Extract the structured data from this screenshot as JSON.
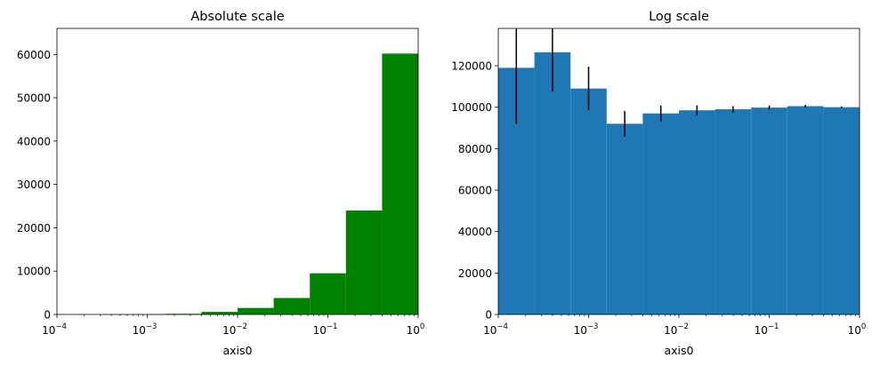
{
  "chart_data": [
    {
      "type": "bar",
      "title": "Absolute scale",
      "xlabel": "axis0",
      "ylabel": "",
      "xscale": "log",
      "xlim": [
        0.0001,
        1
      ],
      "ylim": [
        0,
        66000
      ],
      "color": "#008000",
      "grid": false,
      "x_ticks": [
        {
          "value": 0.0001,
          "base": "10",
          "exp": "−4"
        },
        {
          "value": 0.001,
          "base": "10",
          "exp": "−3"
        },
        {
          "value": 0.01,
          "base": "10",
          "exp": "−2"
        },
        {
          "value": 0.1,
          "base": "10",
          "exp": "−1"
        },
        {
          "value": 1,
          "base": "10",
          "exp": "0"
        }
      ],
      "y_ticks": [
        0,
        10000,
        20000,
        30000,
        40000,
        50000,
        60000
      ],
      "bins": [
        {
          "x0": 0.000251,
          "x1": 0.000631,
          "value": 10
        },
        {
          "x0": 0.000631,
          "x1": 0.001585,
          "value": 40
        },
        {
          "x0": 0.001585,
          "x1": 0.003981,
          "value": 150
        },
        {
          "x0": 0.003981,
          "x1": 0.01,
          "value": 600
        },
        {
          "x0": 0.01,
          "x1": 0.025119,
          "value": 1500
        },
        {
          "x0": 0.025119,
          "x1": 0.063096,
          "value": 3800
        },
        {
          "x0": 0.063096,
          "x1": 0.158489,
          "value": 9500
        },
        {
          "x0": 0.158489,
          "x1": 0.398107,
          "value": 24000
        },
        {
          "x0": 0.398107,
          "x1": 1,
          "value": 60200
        }
      ]
    },
    {
      "type": "bar",
      "title": "Log scale",
      "xlabel": "axis0",
      "ylabel": "",
      "xscale": "log",
      "xlim": [
        0.0001,
        1
      ],
      "ylim": [
        0,
        138000
      ],
      "color": "#1f77b4",
      "error_bars": true,
      "grid": false,
      "x_ticks": [
        {
          "value": 0.0001,
          "base": "10",
          "exp": "−4"
        },
        {
          "value": 0.001,
          "base": "10",
          "exp": "−3"
        },
        {
          "value": 0.01,
          "base": "10",
          "exp": "−2"
        },
        {
          "value": 0.1,
          "base": "10",
          "exp": "−1"
        },
        {
          "value": 1,
          "base": "10",
          "exp": "0"
        }
      ],
      "y_ticks": [
        0,
        20000,
        40000,
        60000,
        80000,
        100000,
        120000
      ],
      "bins": [
        {
          "x0": 0.0001,
          "x1": 0.000251,
          "value": 119000,
          "err": 27000
        },
        {
          "x0": 0.000251,
          "x1": 0.000631,
          "value": 126500,
          "err": 19000
        },
        {
          "x0": 0.000631,
          "x1": 0.001585,
          "value": 109000,
          "err": 10500
        },
        {
          "x0": 0.001585,
          "x1": 0.003981,
          "value": 92000,
          "err": 6200
        },
        {
          "x0": 0.003981,
          "x1": 0.01,
          "value": 97000,
          "err": 3800
        },
        {
          "x0": 0.01,
          "x1": 0.025119,
          "value": 98500,
          "err": 2400
        },
        {
          "x0": 0.025119,
          "x1": 0.063096,
          "value": 99000,
          "err": 1500
        },
        {
          "x0": 0.063096,
          "x1": 0.158489,
          "value": 99800,
          "err": 1000
        },
        {
          "x0": 0.158489,
          "x1": 0.398107,
          "value": 100500,
          "err": 600
        },
        {
          "x0": 0.398107,
          "x1": 1,
          "value": 100000,
          "err": 400
        }
      ]
    }
  ]
}
